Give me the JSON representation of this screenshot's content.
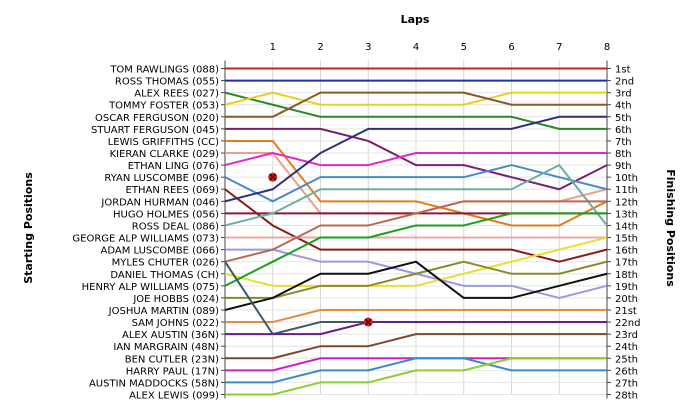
{
  "chart_data": {
    "type": "line",
    "title": "Laps",
    "left_axis_label": "Starting Positions",
    "right_axis_label": "Finishing Positions",
    "x": [
      0,
      1,
      2,
      3,
      4,
      5,
      6,
      7,
      8
    ],
    "x_tick_labels": [
      "1",
      "2",
      "3",
      "4",
      "5",
      "6",
      "7",
      "8"
    ],
    "y_range": [
      1,
      28
    ],
    "finish_labels": [
      "1st",
      "2nd",
      "3rd",
      "4th",
      "5th",
      "6th",
      "7th",
      "8th",
      "9th",
      "10th",
      "11th",
      "12th",
      "13th",
      "14th",
      "15th",
      "16th",
      "17th",
      "18th",
      "19th",
      "20th",
      "21st",
      "22nd",
      "23rd",
      "24th",
      "25th",
      "26th",
      "27th",
      "28th"
    ],
    "grid": true,
    "series": [
      {
        "name": "TOM RAWLINGS (088)",
        "color": "#cc1f1f",
        "positions": [
          1,
          1,
          1,
          1,
          1,
          1,
          1,
          1,
          1
        ]
      },
      {
        "name": "ROSS THOMAS (055)",
        "color": "#1f2fb0",
        "positions": [
          2,
          2,
          2,
          2,
          2,
          2,
          2,
          2,
          2
        ]
      },
      {
        "name": "ALEX REES (027)",
        "color": "#2a8a2a",
        "positions": [
          3,
          4,
          5,
          5,
          5,
          5,
          5,
          6,
          6
        ]
      },
      {
        "name": "TOMMY FOSTER (053)",
        "color": "#e6d21e",
        "positions": [
          4,
          3,
          4,
          4,
          4,
          4,
          3,
          3,
          3
        ]
      },
      {
        "name": "OSCAR FERGUSON (020)",
        "color": "#8c5a28",
        "positions": [
          5,
          5,
          3,
          3,
          3,
          3,
          4,
          4,
          4
        ]
      },
      {
        "name": "STUART FERGUSON (045)",
        "color": "#7a1f6e",
        "positions": [
          6,
          6,
          6,
          7,
          9,
          9,
          10,
          11,
          9
        ]
      },
      {
        "name": "LEWIS GRIFFITHS (CC)",
        "color": "#e07b1e",
        "positions": [
          7,
          7,
          12,
          12,
          12,
          13,
          14,
          14,
          12
        ]
      },
      {
        "name": "KIERAN CLARKE (029)",
        "color": "#eaa08c",
        "positions": [
          8,
          8,
          13,
          13,
          13,
          12,
          12,
          12,
          11
        ]
      },
      {
        "name": "ETHAN LING (076)",
        "color": "#e028c8",
        "positions": [
          9,
          8,
          9,
          9,
          8,
          8,
          8,
          8,
          8
        ]
      },
      {
        "name": "RYAN LUSCOMBE (096)",
        "color": "#4a8acc",
        "positions": [
          10,
          12,
          10,
          10,
          10,
          10,
          9,
          10,
          11
        ]
      },
      {
        "name": "ETHAN REES (069)",
        "color": "#8a1a1a",
        "positions": [
          11,
          14,
          16,
          16,
          16,
          16,
          16,
          17,
          16
        ]
      },
      {
        "name": "JORDAN HURMAN (046)",
        "color": "#2e2e7a",
        "positions": [
          12,
          11,
          8,
          6,
          6,
          6,
          6,
          5,
          5
        ]
      },
      {
        "name": "HUGO HOLMES (056)",
        "color": "#8a1a3a",
        "positions": [
          13,
          13,
          13,
          13,
          13,
          13,
          13,
          13,
          13
        ]
      },
      {
        "name": "ROSS DEAL (086)",
        "color": "#6ab0a0",
        "positions": [
          14,
          13,
          11,
          11,
          11,
          11,
          11,
          9,
          14
        ]
      },
      {
        "name": "GEORGE ALP WILLIAMS (073)",
        "color": "#e8a8a8",
        "positions": [
          15,
          15,
          15,
          15,
          15,
          15,
          15,
          15,
          15
        ]
      },
      {
        "name": "ADAM LUSCOMBE (066)",
        "color": "#9a9ae0",
        "positions": [
          16,
          16,
          17,
          17,
          18,
          19,
          19,
          20,
          19
        ]
      },
      {
        "name": "MYLES CHUTER (026)",
        "color": "#b86a50",
        "positions": [
          17,
          16,
          14,
          14,
          13,
          12,
          12,
          12,
          12
        ]
      },
      {
        "name": "DANIEL THOMAS (CH)",
        "color": "#e8e030",
        "positions": [
          18,
          19,
          19,
          19,
          19,
          18,
          17,
          16,
          15
        ]
      },
      {
        "name": "HENRY ALP WILLIAMS (075)",
        "color": "#1aa01a",
        "positions": [
          19,
          17,
          15,
          15,
          14,
          14,
          13,
          13,
          13
        ]
      },
      {
        "name": "JOE HOBBS (024)",
        "color": "#8a8a2a",
        "positions": [
          20,
          20,
          19,
          19,
          18,
          17,
          18,
          18,
          17
        ]
      },
      {
        "name": "JOSHUA MARTIN (089)",
        "color": "#111111",
        "positions": [
          21,
          20,
          18,
          18,
          17,
          20,
          20,
          19,
          18
        ]
      },
      {
        "name": "SAM JOHNS (022)",
        "color": "#e09040",
        "positions": [
          22,
          22,
          21,
          21,
          21,
          21,
          21,
          21,
          21
        ]
      },
      {
        "name": "ALEX AUSTIN (36N)",
        "color": "#3a5a6a",
        "positions": [
          17,
          23,
          22,
          22,
          22,
          22,
          22,
          22,
          22
        ]
      },
      {
        "name": "IAN MARGRAIN (48N)",
        "color": "#6a1a8a",
        "positions": [
          23,
          23,
          23,
          22,
          22,
          22,
          22,
          22,
          22
        ]
      },
      {
        "name": "BEN CUTLER (23N)",
        "color": "#7a4a2a",
        "positions": [
          25,
          25,
          24,
          24,
          23,
          23,
          23,
          23,
          23
        ]
      },
      {
        "name": "HARRY PAUL (17N)",
        "color": "#d020c0",
        "positions": [
          26,
          26,
          25,
          25,
          25,
          25,
          25,
          25,
          25
        ]
      },
      {
        "name": "AUSTIN MADDOCKS (58N)",
        "color": "#3a8ad0",
        "positions": [
          27,
          27,
          26,
          26,
          25,
          25,
          26,
          26,
          26
        ]
      },
      {
        "name": "ALEX LEWIS (099)",
        "color": "#8ad030",
        "positions": [
          28,
          28,
          27,
          27,
          26,
          26,
          25,
          25,
          25
        ]
      }
    ],
    "markers": [
      {
        "x": 1,
        "position": 10
      },
      {
        "x": 3,
        "position": 22
      }
    ]
  }
}
